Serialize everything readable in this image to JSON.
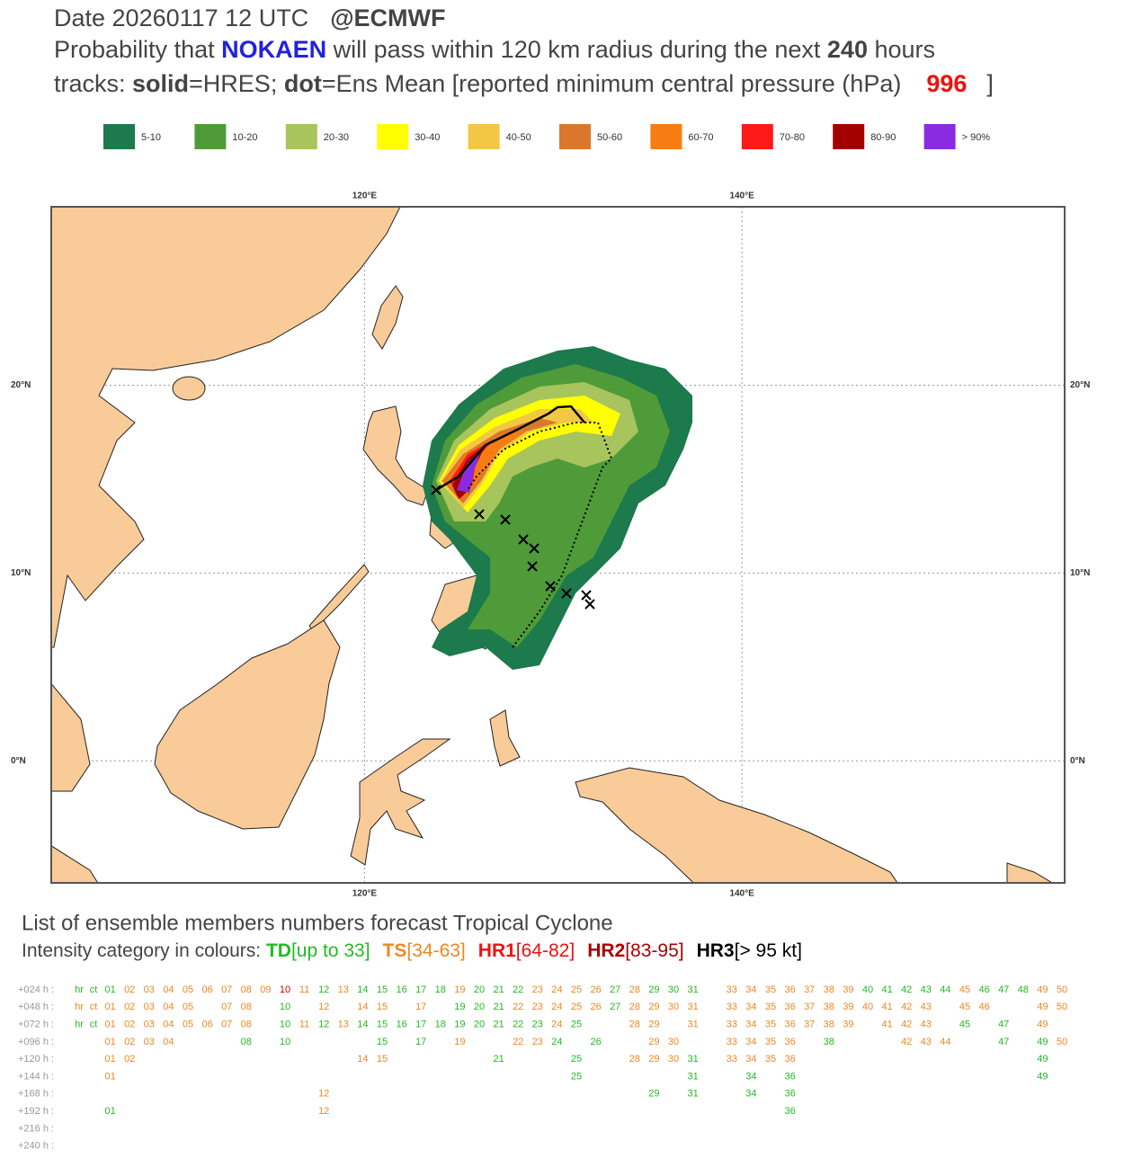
{
  "header": {
    "date": "Date 20260117 12 UTC",
    "source": "@ECMWF",
    "prob_prefix": "Probability that ",
    "storm": "NOKAEN",
    "prob_middle": " will pass within 120 km radius during the next ",
    "hours": "240",
    "prob_suffix": " hours",
    "tracks_prefix": "tracks: ",
    "solid": "solid",
    "hres": "=HRES; ",
    "dot": "dot",
    "mean": "=Ens Mean [reported minimum central pressure (hPa)",
    "pressure": "996",
    "close": "]"
  },
  "legend": [
    {
      "label": "5-10",
      "color": "#1c7a4c"
    },
    {
      "label": "10-20",
      "color": "#4f9b3a"
    },
    {
      "label": "20-30",
      "color": "#a8c45c"
    },
    {
      "label": "30-40",
      "color": "#ffff00"
    },
    {
      "label": "40-50",
      "color": "#f2c744"
    },
    {
      "label": "50-60",
      "color": "#d9782c"
    },
    {
      "label": "60-70",
      "color": "#f77c12"
    },
    {
      "label": "70-80",
      "color": "#ff1a1a"
    },
    {
      "label": "80-90",
      "color": "#a30000"
    },
    {
      "label": "> 90%",
      "color": "#8a2be2"
    }
  ],
  "map": {
    "xlim": [
      103.4,
      157.1
    ],
    "ylim": [
      -6.5,
      29.5
    ],
    "xticks": [
      {
        "value": 120,
        "label": "120°E"
      },
      {
        "value": 140,
        "label": "140°E"
      }
    ],
    "yticks": [
      {
        "value": 0,
        "label": "0°N"
      },
      {
        "value": 10,
        "label": "10°N"
      },
      {
        "value": 20,
        "label": "20°N"
      }
    ]
  },
  "members": {
    "title": "List of ensemble members numbers forecast Tropical Cyclone",
    "intensity_label": "Intensity category in colours: ",
    "categories": [
      {
        "name": "TD",
        "range": "[up to 33]",
        "color": "#22bb22"
      },
      {
        "name": "TS",
        "range": "[34-63]",
        "color": "#ee8822"
      },
      {
        "name": "HR1",
        "range": "[64-82]",
        "color": "#ee1111"
      },
      {
        "name": "HR2",
        "range": "[83-95]",
        "color": "#aa0000"
      },
      {
        "name": "HR3",
        "range": "[> 95 kt]",
        "color": "#000000"
      }
    ],
    "rows": [
      {
        "label": "+024 h :",
        "cells": [
          [
            "hr",
            "#22bb22"
          ],
          [
            "ct",
            "#22bb22"
          ],
          [
            "01",
            "#22bb22"
          ],
          [
            "02",
            "#ee8822"
          ],
          [
            "03",
            "#ee8822"
          ],
          [
            "04",
            "#ee8822"
          ],
          [
            "05",
            "#ee8822"
          ],
          [
            "06",
            "#ee8822"
          ],
          [
            "07",
            "#ee8822"
          ],
          [
            "08",
            "#ee8822"
          ],
          [
            "09",
            "#ee8822"
          ],
          [
            "10",
            "#cc0000"
          ],
          [
            "11",
            "#ee8822"
          ],
          [
            "12",
            "#22bb22"
          ],
          [
            "13",
            "#ee8822"
          ],
          [
            "14",
            "#22bb22"
          ],
          [
            "15",
            "#22bb22"
          ],
          [
            "16",
            "#22bb22"
          ],
          [
            "17",
            "#22bb22"
          ],
          [
            "18",
            "#22bb22"
          ],
          [
            "19",
            "#ee8822"
          ],
          [
            "20",
            "#22bb22"
          ],
          [
            "21",
            "#22bb22"
          ],
          [
            "22",
            "#22bb22"
          ],
          [
            "23",
            "#ee8822"
          ],
          [
            "24",
            "#ee8822"
          ],
          [
            "25",
            "#ee8822"
          ],
          [
            "26",
            "#ee8822"
          ],
          [
            "27",
            "#22bb22"
          ],
          [
            "28",
            "#ee8822"
          ],
          [
            "29",
            "#22bb22"
          ],
          [
            "30",
            "#22bb22"
          ],
          [
            "31",
            "#22bb22"
          ],
          null,
          [
            "33",
            "#ee8822"
          ],
          [
            "34",
            "#ee8822"
          ],
          [
            "35",
            "#ee8822"
          ],
          [
            "36",
            "#ee8822"
          ],
          [
            "37",
            "#ee8822"
          ],
          [
            "38",
            "#ee8822"
          ],
          [
            "39",
            "#ee8822"
          ],
          [
            "40",
            "#22bb22"
          ],
          [
            "41",
            "#22bb22"
          ],
          [
            "42",
            "#22bb22"
          ],
          [
            "43",
            "#22bb22"
          ],
          [
            "44",
            "#22bb22"
          ],
          [
            "45",
            "#ee8822"
          ],
          [
            "46",
            "#22bb22"
          ],
          [
            "47",
            "#22bb22"
          ],
          [
            "48",
            "#22bb22"
          ],
          [
            "49",
            "#ee8822"
          ],
          [
            "50",
            "#ee8822"
          ]
        ]
      },
      {
        "label": "+048 h :",
        "cells": [
          [
            "hr",
            "#ee8822"
          ],
          [
            "ct",
            "#ee8822"
          ],
          [
            "01",
            "#ee8822"
          ],
          [
            "02",
            "#ee8822"
          ],
          [
            "03",
            "#ee8822"
          ],
          [
            "04",
            "#ee8822"
          ],
          [
            "05",
            "#ee8822"
          ],
          null,
          [
            "07",
            "#ee8822"
          ],
          [
            "08",
            "#ee8822"
          ],
          null,
          [
            "10",
            "#22bb22"
          ],
          null,
          [
            "12",
            "#ee8822"
          ],
          null,
          [
            "14",
            "#ee8822"
          ],
          [
            "15",
            "#ee8822"
          ],
          null,
          [
            "17",
            "#ee8822"
          ],
          null,
          [
            "19",
            "#22bb22"
          ],
          [
            "20",
            "#22bb22"
          ],
          [
            "21",
            "#22bb22"
          ],
          [
            "22",
            "#ee8822"
          ],
          [
            "23",
            "#ee8822"
          ],
          [
            "24",
            "#ee8822"
          ],
          [
            "25",
            "#ee8822"
          ],
          [
            "26",
            "#ee8822"
          ],
          [
            "27",
            "#22bb22"
          ],
          [
            "28",
            "#ee8822"
          ],
          [
            "29",
            "#ee8822"
          ],
          [
            "30",
            "#ee8822"
          ],
          [
            "31",
            "#ee8822"
          ],
          null,
          [
            "33",
            "#ee8822"
          ],
          [
            "34",
            "#ee8822"
          ],
          [
            "35",
            "#ee8822"
          ],
          [
            "36",
            "#ee8822"
          ],
          [
            "37",
            "#ee8822"
          ],
          [
            "38",
            "#ee8822"
          ],
          [
            "39",
            "#ee8822"
          ],
          [
            "40",
            "#ee8822"
          ],
          [
            "41",
            "#ee8822"
          ],
          [
            "42",
            "#ee8822"
          ],
          [
            "43",
            "#ee8822"
          ],
          null,
          [
            "45",
            "#ee8822"
          ],
          [
            "46",
            "#ee8822"
          ],
          null,
          null,
          [
            "49",
            "#ee8822"
          ],
          [
            "50",
            "#ee8822"
          ]
        ]
      },
      {
        "label": "+072 h :",
        "cells": [
          [
            "hr",
            "#22bb22"
          ],
          [
            "ct",
            "#22bb22"
          ],
          [
            "01",
            "#ee8822"
          ],
          [
            "02",
            "#ee8822"
          ],
          [
            "03",
            "#ee8822"
          ],
          [
            "04",
            "#ee8822"
          ],
          [
            "05",
            "#ee8822"
          ],
          [
            "06",
            "#ee8822"
          ],
          [
            "07",
            "#ee8822"
          ],
          [
            "08",
            "#ee8822"
          ],
          null,
          [
            "10",
            "#22bb22"
          ],
          [
            "11",
            "#ee8822"
          ],
          [
            "12",
            "#22bb22"
          ],
          [
            "13",
            "#ee8822"
          ],
          [
            "14",
            "#22bb22"
          ],
          [
            "15",
            "#22bb22"
          ],
          [
            "16",
            "#22bb22"
          ],
          [
            "17",
            "#22bb22"
          ],
          [
            "18",
            "#22bb22"
          ],
          [
            "19",
            "#22bb22"
          ],
          [
            "20",
            "#22bb22"
          ],
          [
            "21",
            "#22bb22"
          ],
          [
            "22",
            "#22bb22"
          ],
          [
            "23",
            "#22bb22"
          ],
          [
            "24",
            "#ee8822"
          ],
          [
            "25",
            "#22bb22"
          ],
          null,
          null,
          [
            "28",
            "#ee8822"
          ],
          [
            "29",
            "#ee8822"
          ],
          null,
          [
            "31",
            "#ee8822"
          ],
          null,
          [
            "33",
            "#ee8822"
          ],
          [
            "34",
            "#ee8822"
          ],
          [
            "35",
            "#ee8822"
          ],
          [
            "36",
            "#ee8822"
          ],
          [
            "37",
            "#ee8822"
          ],
          [
            "38",
            "#ee8822"
          ],
          [
            "39",
            "#ee8822"
          ],
          null,
          [
            "41",
            "#ee8822"
          ],
          [
            "42",
            "#ee8822"
          ],
          [
            "43",
            "#ee8822"
          ],
          null,
          [
            "45",
            "#22bb22"
          ],
          null,
          [
            "47",
            "#22bb22"
          ],
          null,
          [
            "49",
            "#ee8822"
          ],
          null
        ]
      },
      {
        "label": "+096 h :",
        "cells": [
          null,
          null,
          [
            "01",
            "#ee8822"
          ],
          [
            "02",
            "#ee8822"
          ],
          [
            "03",
            "#ee8822"
          ],
          [
            "04",
            "#ee8822"
          ],
          null,
          null,
          null,
          [
            "08",
            "#22bb22"
          ],
          null,
          [
            "10",
            "#22bb22"
          ],
          null,
          null,
          null,
          null,
          [
            "15",
            "#22bb22"
          ],
          null,
          [
            "17",
            "#22bb22"
          ],
          null,
          [
            "19",
            "#ee8822"
          ],
          null,
          null,
          [
            "22",
            "#ee8822"
          ],
          [
            "23",
            "#ee8822"
          ],
          [
            "24",
            "#22bb22"
          ],
          null,
          [
            "26",
            "#22bb22"
          ],
          null,
          null,
          [
            "29",
            "#ee8822"
          ],
          [
            "30",
            "#ee8822"
          ],
          null,
          null,
          [
            "33",
            "#ee8822"
          ],
          [
            "34",
            "#ee8822"
          ],
          [
            "35",
            "#ee8822"
          ],
          [
            "36",
            "#ee8822"
          ],
          null,
          [
            "38",
            "#22bb22"
          ],
          null,
          null,
          null,
          [
            "42",
            "#ee8822"
          ],
          [
            "43",
            "#ee8822"
          ],
          [
            "44",
            "#ee8822"
          ],
          null,
          null,
          [
            "47",
            "#22bb22"
          ],
          null,
          [
            "49",
            "#22bb22"
          ],
          [
            "50",
            "#ee8822"
          ]
        ]
      },
      {
        "label": "+120 h :",
        "cells": [
          null,
          null,
          [
            "01",
            "#ee8822"
          ],
          [
            "02",
            "#ee8822"
          ],
          null,
          null,
          null,
          null,
          null,
          null,
          null,
          null,
          null,
          null,
          null,
          [
            "14",
            "#ee8822"
          ],
          [
            "15",
            "#ee8822"
          ],
          null,
          null,
          null,
          null,
          null,
          [
            "21",
            "#22bb22"
          ],
          null,
          null,
          null,
          [
            "25",
            "#22bb22"
          ],
          null,
          null,
          [
            "28",
            "#ee8822"
          ],
          [
            "29",
            "#ee8822"
          ],
          [
            "30",
            "#ee8822"
          ],
          [
            "31",
            "#22bb22"
          ],
          null,
          [
            "33",
            "#ee8822"
          ],
          [
            "34",
            "#ee8822"
          ],
          [
            "35",
            "#ee8822"
          ],
          [
            "36",
            "#ee8822"
          ],
          null,
          null,
          null,
          null,
          null,
          null,
          null,
          null,
          null,
          null,
          null,
          null,
          [
            "49",
            "#22bb22"
          ],
          null
        ]
      },
      {
        "label": "+144 h :",
        "cells": [
          null,
          null,
          [
            "01",
            "#ee8822"
          ],
          null,
          null,
          null,
          null,
          null,
          null,
          null,
          null,
          null,
          null,
          null,
          null,
          null,
          null,
          null,
          null,
          null,
          null,
          null,
          null,
          null,
          null,
          null,
          [
            "25",
            "#22bb22"
          ],
          null,
          null,
          null,
          null,
          null,
          [
            "31",
            "#22bb22"
          ],
          null,
          null,
          [
            "34",
            "#22bb22"
          ],
          null,
          [
            "36",
            "#22bb22"
          ],
          null,
          null,
          null,
          null,
          null,
          null,
          null,
          null,
          null,
          null,
          null,
          null,
          [
            "49",
            "#22bb22"
          ],
          null
        ]
      },
      {
        "label": "+168 h :",
        "cells": [
          null,
          null,
          null,
          null,
          null,
          null,
          null,
          null,
          null,
          null,
          null,
          null,
          null,
          [
            "12",
            "#ee8822"
          ],
          null,
          null,
          null,
          null,
          null,
          null,
          null,
          null,
          null,
          null,
          null,
          null,
          null,
          null,
          null,
          null,
          [
            "29",
            "#22bb22"
          ],
          null,
          [
            "31",
            "#22bb22"
          ],
          null,
          null,
          [
            "34",
            "#22bb22"
          ],
          null,
          [
            "36",
            "#22bb22"
          ],
          null,
          null,
          null,
          null,
          null,
          null,
          null,
          null,
          null,
          null,
          null,
          null,
          null,
          null
        ]
      },
      {
        "label": "+192 h :",
        "cells": [
          null,
          null,
          [
            "01",
            "#22bb22"
          ],
          null,
          null,
          null,
          null,
          null,
          null,
          null,
          null,
          null,
          null,
          [
            "12",
            "#ee8822"
          ],
          null,
          null,
          null,
          null,
          null,
          null,
          null,
          null,
          null,
          null,
          null,
          null,
          null,
          null,
          null,
          null,
          null,
          null,
          null,
          null,
          null,
          null,
          null,
          [
            "36",
            "#22bb22"
          ],
          null,
          null,
          null,
          null,
          null,
          null,
          null,
          null,
          null,
          null,
          null,
          null,
          null,
          null
        ]
      },
      {
        "label": "+216 h :"
      },
      {
        "label": "+240 h :"
      }
    ]
  }
}
